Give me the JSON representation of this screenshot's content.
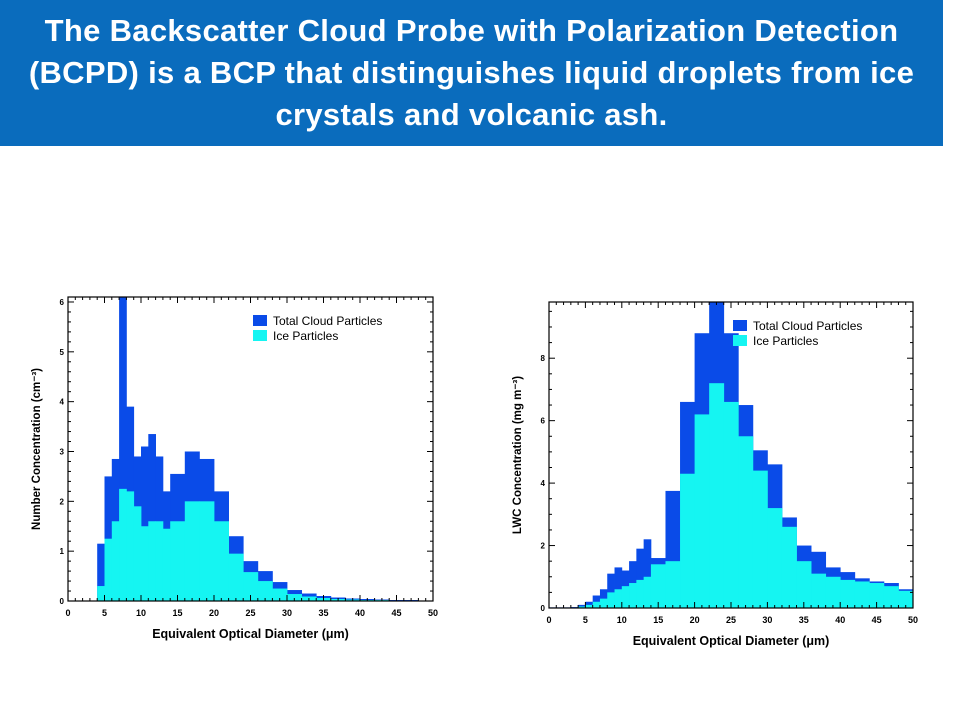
{
  "slide": {
    "title": "The Backscatter Cloud Probe with Polarization Detection (BCPD) is a BCP that distinguishes liquid droplets from ice crystals and volcanic ash.",
    "banner_color": "#0a6cbd"
  },
  "colors": {
    "total": "#0a4be8",
    "ice": "#15f5f2"
  },
  "chart_data": [
    {
      "type": "bar",
      "style": "stacked-step-histogram",
      "xlabel": "Equivalent Optical Diameter (μm)",
      "ylabel": "Number Concentration (cm⁻³)",
      "xlim": [
        0,
        50
      ],
      "ylim": [
        0,
        6.1
      ],
      "xticks": [
        0,
        5,
        10,
        15,
        20,
        25,
        30,
        35,
        40,
        45,
        50
      ],
      "yticks": [
        0,
        1,
        2,
        3,
        4,
        5,
        6
      ],
      "legend": "top-right",
      "grid": false,
      "bin_edges": [
        4,
        5,
        6,
        7,
        8,
        9,
        10,
        11,
        12,
        13,
        14,
        16,
        18,
        20,
        22,
        24,
        26,
        28,
        30,
        32,
        34,
        36,
        38,
        40,
        42,
        44,
        46,
        48,
        50
      ],
      "series": [
        {
          "name": "Total Cloud Particles",
          "values": [
            1.15,
            2.5,
            2.85,
            6.1,
            3.9,
            2.9,
            3.1,
            3.35,
            2.9,
            2.2,
            2.55,
            3.0,
            2.85,
            2.2,
            1.3,
            0.8,
            0.6,
            0.38,
            0.22,
            0.15,
            0.1,
            0.07,
            0.05,
            0.04,
            0.03,
            0.02,
            0.02,
            0.01
          ]
        },
        {
          "name": "Ice Particles",
          "values": [
            0.3,
            1.25,
            1.6,
            2.25,
            2.2,
            1.9,
            1.5,
            1.6,
            1.6,
            1.45,
            1.6,
            2.0,
            2.0,
            1.6,
            0.95,
            0.58,
            0.4,
            0.25,
            0.14,
            0.09,
            0.06,
            0.04,
            0.03,
            0.02,
            0.02,
            0.01,
            0.01,
            0.01
          ]
        }
      ]
    },
    {
      "type": "bar",
      "style": "stacked-step-histogram",
      "xlabel": "Equivalent Optical Diameter (μm)",
      "ylabel": "LWC Concentration (mg m⁻³)",
      "xlim": [
        0,
        50
      ],
      "ylim": [
        0,
        9.8
      ],
      "xticks": [
        0,
        5,
        10,
        15,
        20,
        25,
        30,
        35,
        40,
        45,
        50
      ],
      "yticks": [
        0,
        2,
        4,
        6,
        8
      ],
      "legend": "top-right",
      "grid": false,
      "bin_edges": [
        0,
        1,
        2,
        3,
        4,
        5,
        6,
        7,
        8,
        9,
        10,
        11,
        12,
        13,
        14,
        16,
        18,
        20,
        22,
        24,
        26,
        28,
        30,
        32,
        34,
        36,
        38,
        40,
        42,
        44,
        46,
        48,
        50
      ],
      "series": [
        {
          "name": "Total Cloud Particles",
          "values": [
            0.02,
            0.02,
            0.02,
            0.03,
            0.1,
            0.2,
            0.4,
            0.6,
            1.1,
            1.3,
            1.2,
            1.5,
            1.9,
            2.2,
            1.6,
            3.75,
            6.6,
            8.8,
            9.8,
            8.8,
            6.5,
            5.05,
            4.6,
            2.9,
            2.0,
            1.8,
            1.3,
            1.15,
            0.95,
            0.85,
            0.8,
            0.6
          ]
        },
        {
          "name": "Ice Particles",
          "values": [
            0.0,
            0.0,
            0.0,
            0.0,
            0.05,
            0.1,
            0.2,
            0.3,
            0.5,
            0.6,
            0.7,
            0.8,
            0.9,
            1.0,
            1.4,
            1.5,
            4.3,
            6.2,
            7.2,
            6.6,
            5.5,
            4.4,
            3.2,
            2.6,
            1.5,
            1.1,
            1.0,
            0.9,
            0.85,
            0.8,
            0.7,
            0.55
          ]
        }
      ]
    }
  ]
}
